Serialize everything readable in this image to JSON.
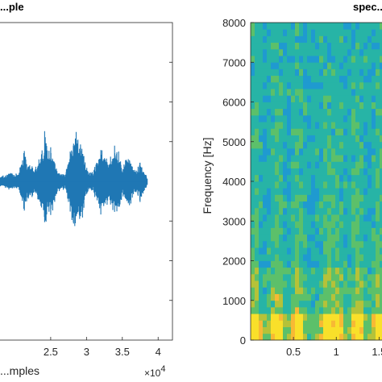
{
  "chart_data": [
    {
      "type": "line",
      "title": "...ple",
      "xlabel": "...mples",
      "x_exponent_label": "×10",
      "x_exponent_power": "4",
      "xlim": [
        1.68,
        4.2
      ],
      "xticks": [
        2.5,
        3,
        3.5,
        4
      ],
      "xtick_labels": [
        "2.5",
        "3",
        "3.5",
        "4"
      ],
      "ylim": [
        -1,
        1
      ],
      "ytick_values": [
        -0.75,
        -0.5,
        -0.25,
        0.25,
        0.5,
        0.75
      ],
      "line_color": "#1f77b4",
      "grid": false,
      "series": [
        {
          "x": [
            1.68,
            1.8,
            1.95,
            2.05,
            2.12,
            2.18,
            2.25,
            2.32,
            2.38,
            2.42,
            2.46,
            2.5,
            2.55,
            2.6,
            2.7,
            2.8,
            2.85,
            2.9,
            2.95,
            3.0,
            3.05,
            3.1,
            3.15,
            3.2,
            3.25,
            3.3,
            3.35,
            3.4,
            3.45,
            3.5,
            3.55,
            3.6,
            3.65,
            3.7,
            3.75,
            3.8,
            3.85
          ],
          "amplitude": [
            0.02,
            0.03,
            0.05,
            0.04,
            0.18,
            0.12,
            0.08,
            0.1,
            0.18,
            0.3,
            0.16,
            0.22,
            0.12,
            0.06,
            0.04,
            0.22,
            0.28,
            0.22,
            0.2,
            0.08,
            0.05,
            0.06,
            0.14,
            0.18,
            0.16,
            0.12,
            0.15,
            0.2,
            0.18,
            0.08,
            0.12,
            0.16,
            0.08,
            0.06,
            0.12,
            0.06,
            0.03
          ]
        }
      ]
    },
    {
      "type": "heatmap",
      "title": "spec...",
      "xlabel": "",
      "ylabel": "Frequency [Hz]",
      "xlim": [
        0,
        1.6
      ],
      "ylim": [
        0,
        8000
      ],
      "xticks": [
        0.5,
        1,
        1.5
      ],
      "xtick_labels": [
        "0.5",
        "1",
        "1.5"
      ],
      "yticks": [
        0,
        1000,
        2000,
        3000,
        4000,
        5000,
        6000,
        7000,
        8000
      ],
      "ytick_labels": [
        "0",
        "1000",
        "2000",
        "3000",
        "4000",
        "5000",
        "6000",
        "7000",
        "8000"
      ],
      "colormap": [
        "#2a3ea0",
        "#2f69d6",
        "#1f9ad0",
        "#27b4a6",
        "#5cc06a",
        "#b5c239",
        "#f7b934",
        "#f9e02a"
      ]
    }
  ]
}
